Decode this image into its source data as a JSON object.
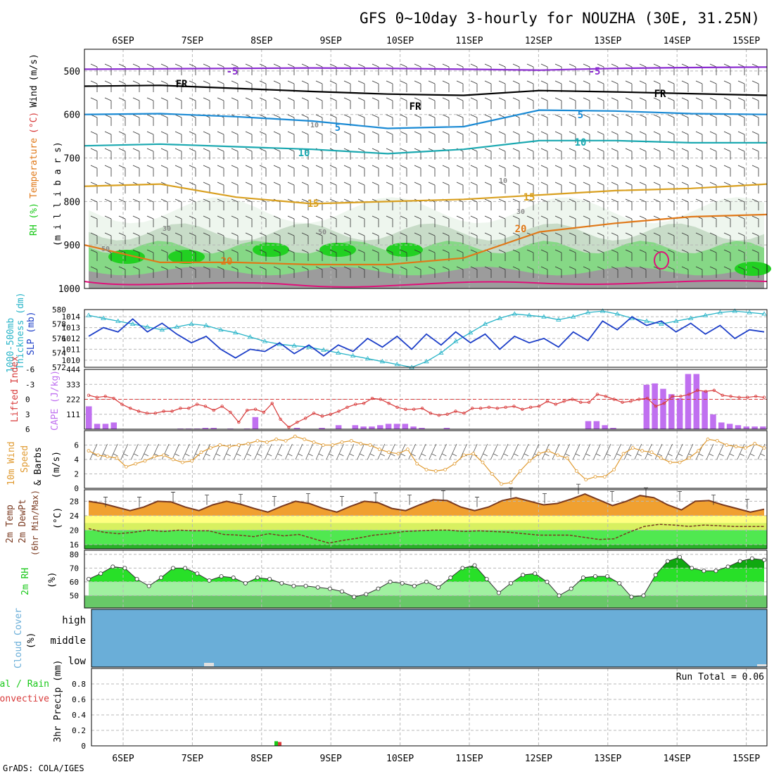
{
  "title": "GFS 0~10day 3-hourly for NOUZHA (30E, 31.25N)",
  "footer": "GrADS: COLA/IGES",
  "colors": {
    "purple": "#8a2bd0",
    "black": "#000000",
    "blue": "#1a8ad4",
    "teal": "#1aa8b0",
    "gold": "#d9a020",
    "orange": "#e07818",
    "magenta": "#e0107a",
    "cyan": "#28b4c8",
    "navy": "#1c3ec8",
    "red": "#d83a3a",
    "violet": "#c070f0",
    "amber": "#e09a30",
    "brown": "#7a3a20",
    "green": "#18c818",
    "sky": "#6aaed8"
  },
  "chart_data": [
    {
      "type": "area",
      "panel": "upper-air",
      "ylabel_parts": [
        "RH (%)",
        "Temperature",
        "(°C)",
        "Wind",
        "(m/s)"
      ],
      "ylabel_sub": "(m i l l i b a r s)",
      "x_ticks": [
        "6SEP",
        "7SEP",
        "8SEP",
        "9SEP",
        "10SEP",
        "11SEP",
        "12SEP",
        "13SEP",
        "14SEP",
        "15SEP"
      ],
      "y_ticks": [
        500,
        600,
        700,
        800,
        900,
        1000
      ],
      "ylim": [
        450,
        1000
      ],
      "isotherms": [
        {
          "label": "-5",
          "color": "purple",
          "values": [
            496,
            495,
            494,
            493,
            494,
            496,
            498,
            494,
            492,
            491
          ]
        },
        {
          "label": "FR",
          "color": "black",
          "values": [
            535,
            533,
            540,
            547,
            553,
            556,
            545,
            548,
            552,
            556
          ]
        },
        {
          "label": "5",
          "color": "blue",
          "values": [
            600,
            598,
            605,
            615,
            632,
            628,
            590,
            592,
            598,
            600
          ]
        },
        {
          "label": "10",
          "color": "teal",
          "values": [
            672,
            668,
            674,
            680,
            690,
            680,
            660,
            660,
            665,
            665
          ]
        },
        {
          "label": "15",
          "color": "gold",
          "values": [
            765,
            760,
            790,
            805,
            800,
            795,
            785,
            775,
            770,
            760
          ]
        },
        {
          "label": "20",
          "color": "orange",
          "values": [
            900,
            940,
            940,
            945,
            945,
            930,
            870,
            850,
            835,
            830
          ]
        }
      ],
      "contour_labels": [
        "-5",
        "-5",
        "FR",
        "FR",
        "FR",
        "5",
        "5",
        "10",
        "10",
        "15",
        "15",
        "20",
        "20",
        "10",
        "10",
        "30",
        "30",
        "50",
        "50"
      ]
    },
    {
      "type": "line",
      "panel": "thickness-slp",
      "ylabel_left": [
        "1000-500mb",
        "Thickness (dm)"
      ],
      "ylabel_right": "SLP (mb)",
      "y_ticks_left": [
        572,
        574,
        576,
        578,
        580
      ],
      "y_ticks_right": [
        1010,
        1011,
        1012,
        1013,
        1014
      ],
      "series": [
        {
          "name": "Thickness",
          "color": "cyan",
          "values": [
            579.2,
            578.8,
            578.4,
            578.0,
            577.6,
            577.2,
            577.6,
            578.0,
            577.8,
            577.2,
            576.8,
            576.2,
            575.6,
            575.2,
            575.0,
            574.8,
            574.4,
            574.0,
            573.6,
            573.2,
            572.8,
            572.4,
            572.0,
            572.8,
            574.0,
            575.6,
            576.8,
            578.0,
            578.8,
            579.4,
            579.2,
            579.0,
            578.6,
            579.0,
            579.6,
            579.8,
            579.4,
            578.8,
            578.4,
            578.0,
            578.4,
            578.8,
            579.2,
            579.6,
            579.8,
            579.6,
            579.4
          ]
        },
        {
          "name": "SLP",
          "color": "navy",
          "values": [
            1012.2,
            1013.0,
            1012.6,
            1013.8,
            1012.6,
            1013.4,
            1012.4,
            1011.6,
            1012.2,
            1011.0,
            1010.2,
            1011.0,
            1010.8,
            1011.6,
            1010.6,
            1011.4,
            1010.4,
            1011.4,
            1010.8,
            1012.0,
            1011.2,
            1012.2,
            1011.0,
            1012.4,
            1011.4,
            1012.6,
            1011.6,
            1012.4,
            1011.0,
            1012.2,
            1011.6,
            1012.0,
            1011.2,
            1012.6,
            1011.8,
            1013.6,
            1012.8,
            1014.0,
            1013.2,
            1013.6,
            1012.6,
            1013.4,
            1012.4,
            1013.2,
            1012.0,
            1012.8,
            1012.6
          ]
        }
      ]
    },
    {
      "type": "bar",
      "panel": "lifted-cape",
      "ylabel_left": "Lifted Index",
      "ylabel_right": "CAPE (J/kg)",
      "y_ticks_left": [
        "-6",
        "-3",
        "0",
        "3",
        "6"
      ],
      "y_ticks_right": [
        111,
        222,
        333,
        444
      ],
      "series": [
        {
          "name": "CAPE",
          "color": "violet",
          "values": [
            170,
            40,
            40,
            50,
            0,
            0,
            0,
            0,
            0,
            0,
            0,
            5,
            5,
            5,
            10,
            10,
            0,
            5,
            0,
            5,
            90,
            0,
            0,
            0,
            0,
            10,
            0,
            0,
            10,
            0,
            30,
            0,
            30,
            20,
            20,
            30,
            40,
            40,
            40,
            20,
            10,
            0,
            0,
            10,
            0,
            0,
            0,
            0,
            0,
            0,
            0,
            0,
            0,
            0,
            0,
            0,
            0,
            0,
            0,
            0,
            60,
            60,
            30,
            10,
            0,
            0,
            0,
            330,
            340,
            300,
            260,
            230,
            410,
            410,
            280,
            110,
            50,
            40,
            30,
            20,
            20,
            20
          ]
        },
        {
          "name": "Lifted Index",
          "color": "red",
          "values": [
            -0.8,
            -0.4,
            -0.6,
            -0.2,
            1.0,
            1.8,
            2.4,
            2.8,
            2.8,
            2.4,
            2.4,
            1.8,
            1.8,
            1.0,
            1.4,
            2.2,
            1.4,
            2.6,
            4.6,
            2.2,
            2.0,
            2.6,
            0.8,
            4.0,
            5.6,
            4.6,
            3.8,
            2.8,
            3.4,
            3.0,
            2.4,
            1.6,
            1.0,
            0.8,
            -0.2,
            0.0,
            0.8,
            1.6,
            2.0,
            2.0,
            1.8,
            2.8,
            3.2,
            3.0,
            2.4,
            2.8,
            1.8,
            1.8,
            1.6,
            1.8,
            1.6,
            1.4,
            2.0,
            1.6,
            1.4,
            0.4,
            1.0,
            0.4,
            0.0,
            0.6,
            0.6,
            -1.0,
            -0.6,
            0.0,
            0.6,
            0.4,
            0.0,
            -0.2,
            1.4,
            0.8,
            -0.6,
            -0.6,
            -1.0,
            -1.8,
            -1.6,
            -1.8,
            -0.8,
            -0.6,
            -0.4,
            -0.4,
            -0.6,
            -0.4
          ]
        }
      ]
    },
    {
      "type": "line",
      "panel": "wind10m",
      "ylabel_parts": [
        "10m Wind",
        "Speed",
        "& Barbs",
        "(m/s)"
      ],
      "y_ticks": [
        0,
        2,
        4,
        6
      ],
      "series": [
        {
          "name": "10m Wind Speed",
          "color": "amber",
          "values": [
            5.2,
            4.6,
            4.4,
            4.2,
            3.0,
            3.4,
            3.8,
            4.4,
            4.6,
            4.0,
            3.6,
            3.8,
            5.0,
            5.6,
            6.0,
            5.8,
            6.0,
            6.2,
            6.6,
            6.4,
            6.8,
            6.6,
            7.2,
            6.8,
            6.4,
            6.0,
            6.0,
            6.4,
            6.6,
            6.2,
            6.0,
            5.4,
            5.0,
            4.8,
            5.4,
            3.4,
            2.6,
            2.4,
            2.6,
            3.4,
            4.6,
            4.8,
            3.6,
            2.0,
            0.6,
            0.8,
            2.4,
            3.8,
            4.8,
            5.2,
            4.6,
            4.2,
            2.4,
            1.2,
            1.6,
            1.6,
            2.6,
            4.8,
            5.6,
            5.2,
            5.0,
            4.2,
            3.6,
            3.6,
            4.2,
            5.2,
            6.8,
            6.6,
            6.0,
            5.8,
            5.6,
            6.2,
            5.6
          ]
        }
      ]
    },
    {
      "type": "area",
      "panel": "temp-dewpt",
      "ylabel_parts": [
        "2m Temp",
        "2m DewPt",
        "(6hr Min/Max)",
        "(°C)"
      ],
      "y_ticks": [
        16,
        20,
        24,
        28
      ],
      "series": [
        {
          "name": "2m Temp",
          "color": "brown",
          "values": [
            28.0,
            27.4,
            26.4,
            25.4,
            26.4,
            28.0,
            27.8,
            26.4,
            25.4,
            27.0,
            28.0,
            27.2,
            26.0,
            25.0,
            26.6,
            28.0,
            27.4,
            26.0,
            25.0,
            26.6,
            28.0,
            27.6,
            26.0,
            25.4,
            27.0,
            28.4,
            28.2,
            26.4,
            25.4,
            26.4,
            28.2,
            29.0,
            28.0,
            27.0,
            27.4,
            28.6,
            30.0,
            28.4,
            26.8,
            28.0,
            29.6,
            29.0,
            27.0,
            25.6,
            28.0,
            28.2,
            27.0,
            26.0,
            25.0,
            25.8
          ]
        },
        {
          "name": "2m DewPt",
          "color": "brown",
          "values": [
            20.4,
            19.4,
            19.0,
            19.4,
            20.0,
            19.6,
            20.0,
            19.8,
            19.8,
            18.8,
            18.6,
            18.2,
            19.0,
            18.4,
            18.8,
            17.6,
            16.4,
            17.2,
            17.8,
            18.6,
            19.0,
            19.6,
            19.8,
            20.0,
            20.0,
            19.6,
            19.8,
            19.6,
            19.4,
            19.0,
            18.6,
            18.6,
            18.6,
            18.0,
            17.4,
            17.6,
            19.4,
            21.0,
            21.6,
            21.4,
            21.0,
            21.4,
            21.2,
            21.0,
            21.0,
            21.0
          ]
        }
      ]
    },
    {
      "type": "area",
      "panel": "rh2m",
      "ylabel_parts": [
        "2m RH",
        "(%)"
      ],
      "y_ticks": [
        50,
        60,
        70,
        80
      ],
      "series": [
        {
          "name": "2m RH",
          "color": "green",
          "values": [
            62,
            66,
            71,
            70,
            62,
            57,
            63,
            70,
            70,
            66,
            61,
            64,
            63,
            59,
            63,
            62,
            59,
            57,
            57,
            56,
            55,
            53,
            49,
            51,
            55,
            60,
            59,
            57,
            60,
            56,
            63,
            70,
            72,
            62,
            52,
            59,
            65,
            66,
            60,
            50,
            55,
            63,
            64,
            64,
            59,
            49,
            50,
            65,
            75,
            78,
            70,
            68,
            68,
            71,
            75,
            77,
            76
          ]
        }
      ]
    },
    {
      "type": "area",
      "panel": "cloud",
      "ylabel_parts": [
        "Cloud Cover",
        "(%)"
      ],
      "y_ticks": [
        "high",
        "middle",
        "low"
      ],
      "series": [
        {
          "name": "Cloud Cover",
          "color": "sky",
          "values": [
            100,
            100,
            100
          ]
        }
      ]
    },
    {
      "type": "bar",
      "panel": "precip",
      "ylabel_parts": [
        "3hr Precip (mm)",
        "Total / Rain",
        "Convective"
      ],
      "y_ticks": [
        0,
        0.2,
        0.4,
        0.6,
        0.8
      ],
      "run_total": "Run Total = 0.06",
      "series": [
        {
          "name": "Total / Rain",
          "color": "green",
          "values": [
            0.06
          ]
        },
        {
          "name": "Convective",
          "color": "red",
          "values": [
            0.05
          ]
        }
      ]
    }
  ]
}
